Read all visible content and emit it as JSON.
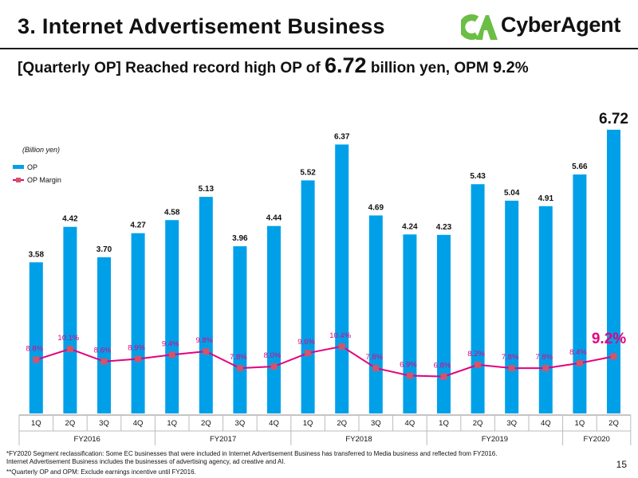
{
  "header": {
    "title": "3. Internet Advertisement Business",
    "logo_text": "CyberAgent"
  },
  "subtitle": {
    "prefix": "[Quarterly OP] Reached record high OP of ",
    "value": "6.72",
    "middle": " billion yen, OPM ",
    "opm": "9.2",
    "suffix": "%"
  },
  "chart_data": {
    "type": "bar",
    "title": "",
    "unit_label": "(Billion yen)",
    "categories": [
      "1Q",
      "2Q",
      "3Q",
      "4Q",
      "1Q",
      "2Q",
      "3Q",
      "4Q",
      "1Q",
      "2Q",
      "3Q",
      "4Q",
      "1Q",
      "2Q",
      "3Q",
      "4Q",
      "1Q",
      "2Q"
    ],
    "fiscal_years": [
      {
        "label": "FY2016",
        "count": 4
      },
      {
        "label": "FY2017",
        "count": 4
      },
      {
        "label": "FY2018",
        "count": 4
      },
      {
        "label": "FY2019",
        "count": 4
      },
      {
        "label": "FY2020",
        "count": 2
      }
    ],
    "series": [
      {
        "name": "OP",
        "type": "bar",
        "color": "#00A0E9",
        "values": [
          3.58,
          4.42,
          3.7,
          4.27,
          4.58,
          5.13,
          3.96,
          4.44,
          5.52,
          6.37,
          4.69,
          4.24,
          4.23,
          5.43,
          5.04,
          4.91,
          5.66,
          6.72
        ],
        "labels": [
          "3.58",
          "4.42",
          "3.70",
          "4.27",
          "4.58",
          "5.13",
          "3.96",
          "4.44",
          "5.52",
          "6.37",
          "4.69",
          "4.24",
          "4.23",
          "5.43",
          "5.04",
          "4.91",
          "5.66",
          "6.72"
        ]
      },
      {
        "name": "OP Margin",
        "type": "line",
        "color": "#E4007F",
        "marker_color": "#D4546A",
        "values": [
          8.8,
          10.1,
          8.6,
          8.9,
          9.4,
          9.8,
          7.8,
          8.0,
          9.6,
          10.4,
          7.8,
          6.9,
          6.8,
          8.2,
          7.8,
          7.8,
          8.4,
          9.2
        ],
        "labels": [
          "8.8%",
          "10.1%",
          "8.6%",
          "8.9%",
          "9.4%",
          "9.8%",
          "7.8%",
          "8.0%",
          "9.6%",
          "10.4%",
          "7.8%",
          "6.9%",
          "6.8%",
          "8.2%",
          "7.8%",
          "7.8%",
          "8.4%",
          "9.2%"
        ]
      }
    ],
    "legend": [
      "OP",
      "OP Margin"
    ],
    "legend_position": "top-left"
  },
  "footnotes": [
    "*FY2020 Segment reclassification: Some EC businesses that were included in Internet Advertisement Business has transferred to Media business and reflected from FY2016.",
    " Internet Advertisement Business includes the businesses of advertising agency, ad creative and AI.",
    "**Quarterly OP and OPM: Exclude earnings incentive until FY2016."
  ],
  "page_number": "15"
}
